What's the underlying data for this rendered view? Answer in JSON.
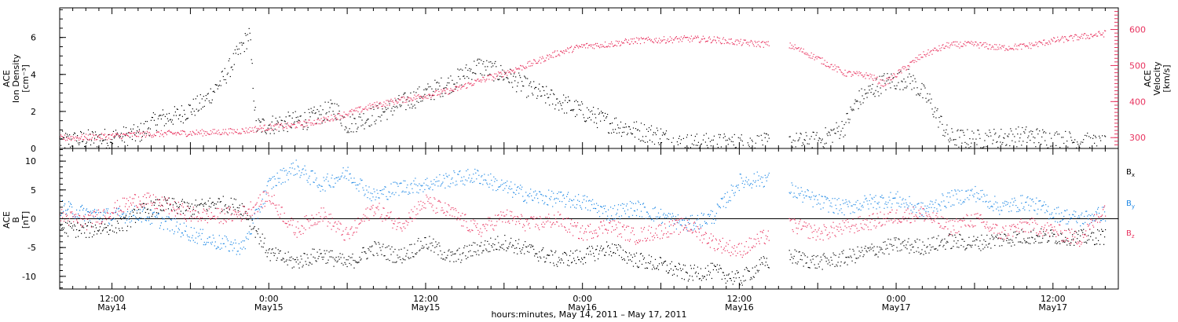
{
  "colors": {
    "black": "#000000",
    "pink": "#e8335f",
    "blue": "#1e88e5"
  },
  "chart_data": [
    {
      "type": "scatter",
      "panel": "top",
      "ylabel_left": [
        "ACE",
        "Ion Density",
        "[cm⁻³]"
      ],
      "ylabel_right": [
        "ACE",
        "Velocity",
        "[km/s]"
      ],
      "ylim_left": [
        0,
        7.6
      ],
      "yticks_left": [
        0,
        2,
        4,
        6
      ],
      "ylim_right": [
        270,
        660
      ],
      "yticks_right": [
        300,
        400,
        500,
        600
      ],
      "x_unit": "hours since 2011-05-14 00:00",
      "xlim": [
        8,
        89
      ],
      "series": [
        {
          "axis": "left",
          "color": "black",
          "values": [
            [
              8,
              0.4
            ],
            [
              10,
              0.5
            ],
            [
              12,
              0.6
            ],
            [
              14,
              0.8
            ],
            [
              15.5,
              1.6
            ],
            [
              17,
              1.8
            ],
            [
              19,
              2.5
            ],
            [
              20.5,
              3.8
            ],
            [
              21.5,
              5.0
            ],
            [
              22.5,
              6.2
            ],
            [
              23,
              1.2
            ],
            [
              25,
              1.4
            ],
            [
              27,
              1.6
            ],
            [
              29,
              2.2
            ],
            [
              30,
              1.3
            ],
            [
              32,
              1.8
            ],
            [
              34,
              2.4
            ],
            [
              36,
              3.0
            ],
            [
              38,
              3.6
            ],
            [
              40,
              4.5
            ],
            [
              42,
              4.0
            ],
            [
              44,
              3.2
            ],
            [
              46,
              2.6
            ],
            [
              48,
              2.0
            ],
            [
              50,
              1.4
            ],
            [
              52,
              1.0
            ],
            [
              54,
              0.7
            ],
            [
              55,
              0.3
            ],
            [
              58,
              0.3
            ],
            [
              62,
              0.3
            ],
            [
              66,
              0.4
            ],
            [
              68,
              1.2
            ],
            [
              69,
              2.6
            ],
            [
              71,
              3.6
            ],
            [
              73,
              3.8
            ],
            [
              74.5,
              2.6
            ],
            [
              76,
              0.6
            ],
            [
              78,
              0.5
            ],
            [
              80,
              0.6
            ],
            [
              82,
              0.7
            ],
            [
              84,
              0.5
            ],
            [
              86,
              0.4
            ],
            [
              88,
              0.15
            ]
          ]
        },
        {
          "axis": "right",
          "color": "pink",
          "values": [
            [
              8,
              300
            ],
            [
              10,
              302
            ],
            [
              12,
              305
            ],
            [
              14,
              310
            ],
            [
              16,
              312
            ],
            [
              18,
              314
            ],
            [
              20,
              316
            ],
            [
              22,
              320
            ],
            [
              24,
              330
            ],
            [
              26,
              335
            ],
            [
              28,
              348
            ],
            [
              30,
              368
            ],
            [
              32,
              390
            ],
            [
              34,
              405
            ],
            [
              36,
              418
            ],
            [
              38,
              432
            ],
            [
              40,
              458
            ],
            [
              42,
              480
            ],
            [
              44,
              505
            ],
            [
              46,
              535
            ],
            [
              48,
              555
            ],
            [
              50,
              560
            ],
            [
              52,
              570
            ],
            [
              54,
              572
            ],
            [
              56,
              575
            ],
            [
              58,
              573
            ],
            [
              60,
              565
            ],
            [
              62,
              560
            ],
            [
              64,
              555
            ],
            [
              66,
              520
            ],
            [
              68,
              480
            ],
            [
              70,
              472
            ],
            [
              71,
              450
            ],
            [
              72.5,
              490
            ],
            [
              74,
              530
            ],
            [
              76,
              558
            ],
            [
              78,
              560
            ],
            [
              80,
              550
            ],
            [
              82,
              555
            ],
            [
              84,
              570
            ],
            [
              86,
              580
            ],
            [
              88,
              590
            ]
          ]
        }
      ]
    },
    {
      "type": "scatter",
      "panel": "bottom",
      "ylabel_left": [
        "ACE",
        "B",
        "[nT]"
      ],
      "ylim": [
        -12.2,
        12.2
      ],
      "yticks": [
        -10,
        -5,
        0,
        5,
        10
      ],
      "x_unit": "hours since 2011-05-14 00:00",
      "xlim": [
        8,
        89
      ],
      "xtick_labels": [
        {
          "t": 12,
          "l1": "12:00",
          "l2": "May14"
        },
        {
          "t": 24,
          "l1": "0:00",
          "l2": "May15"
        },
        {
          "t": 36,
          "l1": "12:00",
          "l2": "May15"
        },
        {
          "t": 48,
          "l1": "0:00",
          "l2": "May16"
        },
        {
          "t": 60,
          "l1": "12:00",
          "l2": "May16"
        },
        {
          "t": 72,
          "l1": "0:00",
          "l2": "May17"
        },
        {
          "t": 84,
          "l1": "12:00",
          "l2": "May17"
        }
      ],
      "xlabel": "hours:minutes, May 14, 2011 – May 17, 2011",
      "series": [
        {
          "name": "B",
          "sub": "x",
          "color": "black",
          "values": [
            [
              8,
              -1.5
            ],
            [
              10,
              -2.0
            ],
            [
              12,
              -1.2
            ],
            [
              13,
              -0.8
            ],
            [
              14,
              1.2
            ],
            [
              16,
              2.5
            ],
            [
              18,
              1.8
            ],
            [
              20,
              2.8
            ],
            [
              22,
              2.0
            ],
            [
              24,
              -6.0
            ],
            [
              26,
              -7.5
            ],
            [
              28,
              -6.0
            ],
            [
              30,
              -7.8
            ],
            [
              32,
              -5.0
            ],
            [
              34,
              -6.5
            ],
            [
              36,
              -4.0
            ],
            [
              38,
              -6.8
            ],
            [
              40,
              -5.0
            ],
            [
              42,
              -4.0
            ],
            [
              44,
              -5.5
            ],
            [
              46,
              -7.0
            ],
            [
              48,
              -6.5
            ],
            [
              50,
              -5.0
            ],
            [
              52,
              -7.0
            ],
            [
              54,
              -8.0
            ],
            [
              56,
              -9.5
            ],
            [
              58,
              -9.0
            ],
            [
              60,
              -10.5
            ],
            [
              62,
              -7.5
            ],
            [
              64,
              -6.5
            ],
            [
              66,
              -7.5
            ],
            [
              68,
              -6.8
            ],
            [
              70,
              -5.5
            ],
            [
              72,
              -4.5
            ],
            [
              74,
              -4.8
            ],
            [
              76,
              -3.8
            ],
            [
              78,
              -4.2
            ],
            [
              80,
              -3.5
            ],
            [
              82,
              -3.0
            ],
            [
              84,
              -3.0
            ],
            [
              86,
              -3.2
            ],
            [
              88,
              -3.0
            ]
          ]
        },
        {
          "name": "B",
          "sub": "y",
          "color": "blue",
          "values": [
            [
              8,
              2.0
            ],
            [
              10,
              1.0
            ],
            [
              12,
              0.5
            ],
            [
              14,
              1.0
            ],
            [
              16,
              -0.5
            ],
            [
              18,
              -2.5
            ],
            [
              20,
              -4.0
            ],
            [
              22,
              -5.0
            ],
            [
              24,
              6.0
            ],
            [
              26,
              9.0
            ],
            [
              28,
              6.0
            ],
            [
              30,
              8.0
            ],
            [
              32,
              4.0
            ],
            [
              34,
              5.5
            ],
            [
              36,
              6.0
            ],
            [
              38,
              7.0
            ],
            [
              40,
              7.5
            ],
            [
              42,
              5.5
            ],
            [
              44,
              4.0
            ],
            [
              46,
              3.5
            ],
            [
              48,
              3.0
            ],
            [
              50,
              1.0
            ],
            [
              52,
              2.0
            ],
            [
              54,
              0.5
            ],
            [
              56,
              -1.0
            ],
            [
              58,
              0.5
            ],
            [
              60,
              6.5
            ],
            [
              62,
              7.0
            ],
            [
              64,
              5.0
            ],
            [
              66,
              3.0
            ],
            [
              68,
              2.0
            ],
            [
              70,
              3.0
            ],
            [
              72,
              3.5
            ],
            [
              74,
              1.5
            ],
            [
              76,
              3.5
            ],
            [
              78,
              4.5
            ],
            [
              80,
              2.0
            ],
            [
              82,
              3.0
            ],
            [
              84,
              1.0
            ],
            [
              86,
              0.0
            ],
            [
              88,
              1.0
            ]
          ]
        },
        {
          "name": "B",
          "sub": "z",
          "color": "pink",
          "values": [
            [
              8,
              0.5
            ],
            [
              10,
              -0.5
            ],
            [
              12,
              1.5
            ],
            [
              14,
              3.5
            ],
            [
              16,
              2.5
            ],
            [
              18,
              0.8
            ],
            [
              20,
              0.5
            ],
            [
              22,
              1.0
            ],
            [
              24,
              4.0
            ],
            [
              26,
              -2.0
            ],
            [
              28,
              1.0
            ],
            [
              30,
              -3.0
            ],
            [
              32,
              2.0
            ],
            [
              34,
              -1.0
            ],
            [
              36,
              3.0
            ],
            [
              38,
              1.0
            ],
            [
              40,
              -2.0
            ],
            [
              42,
              0.5
            ],
            [
              44,
              -1.0
            ],
            [
              46,
              0.0
            ],
            [
              48,
              -2.5
            ],
            [
              50,
              -1.0
            ],
            [
              52,
              -3.0
            ],
            [
              54,
              -2.0
            ],
            [
              56,
              -1.0
            ],
            [
              58,
              -4.0
            ],
            [
              60,
              -5.5
            ],
            [
              62,
              -3.0
            ],
            [
              64,
              -1.0
            ],
            [
              66,
              -2.5
            ],
            [
              68,
              -1.5
            ],
            [
              70,
              -0.5
            ],
            [
              72,
              0.5
            ],
            [
              74,
              1.0
            ],
            [
              76,
              -1.5
            ],
            [
              78,
              0.0
            ],
            [
              80,
              -2.5
            ],
            [
              82,
              -1.0
            ],
            [
              84,
              -2.0
            ],
            [
              86,
              -3.5
            ],
            [
              88,
              2.0
            ]
          ]
        }
      ]
    }
  ]
}
